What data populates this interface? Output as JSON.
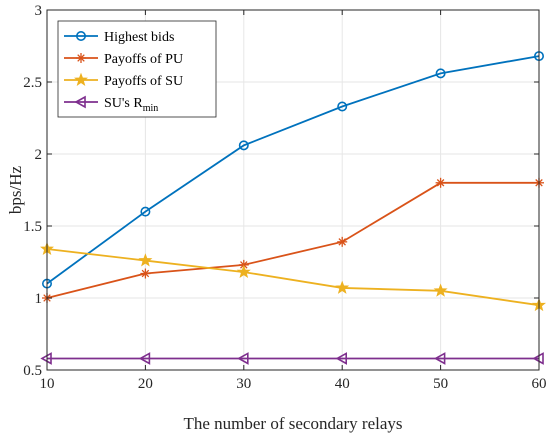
{
  "chart_data": {
    "type": "line",
    "xlabel": "The number of secondary relays",
    "ylabel": "bps/Hz",
    "x": [
      10,
      20,
      30,
      40,
      50,
      60
    ],
    "xlim": [
      10,
      60
    ],
    "ylim": [
      0.5,
      3
    ],
    "xticks": [
      10,
      20,
      30,
      40,
      50,
      60
    ],
    "yticks": [
      0.5,
      1,
      1.5,
      2,
      2.5,
      3
    ],
    "xtick_labels": [
      "10",
      "20",
      "30",
      "40",
      "50",
      "60"
    ],
    "ytick_labels": [
      "0.5",
      "1",
      "1.5",
      "2",
      "2.5",
      "3"
    ],
    "grid": true,
    "legend_position": "top-left",
    "series": [
      {
        "name": "Highest bids",
        "name_main": "Highest bids",
        "name_sub": "",
        "color": "#0072BD",
        "marker": "circle",
        "values": [
          1.1,
          1.6,
          2.06,
          2.33,
          2.56,
          2.68
        ]
      },
      {
        "name": "Payoffs of PU",
        "name_main": "Payoffs of PU",
        "name_sub": "",
        "color": "#D95319",
        "marker": "asterisk",
        "values": [
          1.0,
          1.17,
          1.23,
          1.39,
          1.8,
          1.8
        ]
      },
      {
        "name": "Payoffs of SU",
        "name_main": "Payoffs of SU",
        "name_sub": "",
        "color": "#EDB120",
        "marker": "star",
        "values": [
          1.34,
          1.26,
          1.18,
          1.07,
          1.05,
          0.95
        ]
      },
      {
        "name": "SU's Rmin",
        "name_main": "SU's R",
        "name_sub": "min",
        "color": "#7E2F8E",
        "marker": "triangle-left",
        "values": [
          0.58,
          0.58,
          0.58,
          0.58,
          0.58,
          0.58
        ]
      }
    ]
  }
}
